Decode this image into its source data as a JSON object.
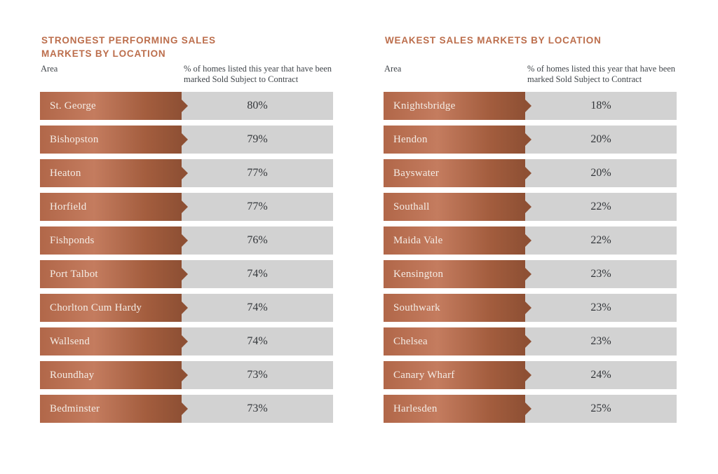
{
  "colors": {
    "title_accent": "#bc6e4c",
    "bar_gradient_left": "#b16749",
    "bar_gradient_light": "#c47c5f",
    "bar_gradient_right": "#8e5034",
    "value_bar_bg": "#d2d2d2",
    "area_text": "#f4ece5",
    "value_text": "#33363a",
    "header_text": "#40454a",
    "page_bg": "#ffffff"
  },
  "panels": [
    {
      "id": "strongest",
      "title_lines": [
        "STRONGEST PERFORMING SALES",
        "MARKETS BY LOCATION"
      ],
      "col_area": "Area",
      "col_value": "% of homes listed this year that have been marked Sold Subject to Contract",
      "rows": [
        {
          "area": "St. George",
          "value": "80%"
        },
        {
          "area": "Bishopston",
          "value": "79%"
        },
        {
          "area": "Heaton",
          "value": "77%"
        },
        {
          "area": "Horfield",
          "value": "77%"
        },
        {
          "area": "Fishponds",
          "value": "76%"
        },
        {
          "area": "Port Talbot",
          "value": "74%"
        },
        {
          "area": "Chorlton Cum Hardy",
          "value": "74%"
        },
        {
          "area": "Wallsend",
          "value": "74%"
        },
        {
          "area": "Roundhay",
          "value": "73%"
        },
        {
          "area": "Bedminster",
          "value": "73%"
        }
      ]
    },
    {
      "id": "weakest",
      "title_lines": [
        "WEAKEST SALES MARKETS BY LOCATION"
      ],
      "col_area": "Area",
      "col_value": "% of homes listed this year that have been marked Sold Subject to Contract",
      "rows": [
        {
          "area": "Knightsbridge",
          "value": "18%"
        },
        {
          "area": "Hendon",
          "value": "20%"
        },
        {
          "area": "Bayswater",
          "value": "20%"
        },
        {
          "area": "Southall",
          "value": "22%"
        },
        {
          "area": "Maida Vale",
          "value": "22%"
        },
        {
          "area": "Kensington",
          "value": "23%"
        },
        {
          "area": "Southwark",
          "value": "23%"
        },
        {
          "area": "Chelsea",
          "value": "23%"
        },
        {
          "area": "Canary Wharf",
          "value": "24%"
        },
        {
          "area": "Harlesden",
          "value": "25%"
        }
      ]
    }
  ],
  "chart_data": [
    {
      "type": "table",
      "title": "STRONGEST PERFORMING SALES MARKETS BY LOCATION",
      "columns": [
        "Area",
        "% of homes listed this year that have been marked Sold Subject to Contract"
      ],
      "categories": [
        "St. George",
        "Bishopston",
        "Heaton",
        "Horfield",
        "Fishponds",
        "Port Talbot",
        "Chorlton Cum Hardy",
        "Wallsend",
        "Roundhay",
        "Bedminster"
      ],
      "values": [
        80,
        79,
        77,
        77,
        76,
        74,
        74,
        74,
        73,
        73
      ],
      "unit": "%"
    },
    {
      "type": "table",
      "title": "WEAKEST SALES MARKETS BY LOCATION",
      "columns": [
        "Area",
        "% of homes listed this year that have been marked Sold Subject to Contract"
      ],
      "categories": [
        "Knightsbridge",
        "Hendon",
        "Bayswater",
        "Southall",
        "Maida Vale",
        "Kensington",
        "Southwark",
        "Chelsea",
        "Canary Wharf",
        "Harlesden"
      ],
      "values": [
        18,
        20,
        20,
        22,
        22,
        23,
        23,
        23,
        24,
        25
      ],
      "unit": "%"
    }
  ]
}
